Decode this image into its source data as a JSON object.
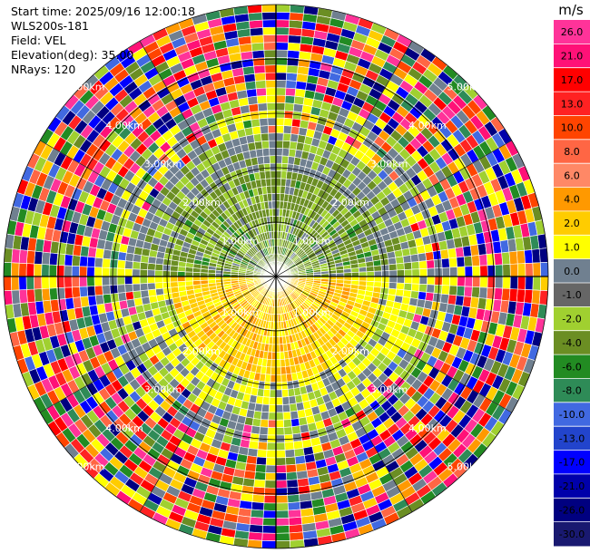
{
  "chart_data": {
    "type": "heatmap",
    "subtype": "ppi-radar",
    "header": {
      "start_time": "Start time: 2025/09/16 12:00:18",
      "instrument": "WLS200s-181",
      "field": "Field: VEL",
      "elevation": "Elevation(deg): 35.00",
      "nrays": "NRays: 120"
    },
    "field": "VEL",
    "elevation_deg": 35.0,
    "n_rays": 120,
    "max_range_km": 5.0,
    "range_rings_km": [
      1.0,
      2.0,
      3.0,
      4.0,
      5.0
    ],
    "range_labels": [
      "1.00km",
      "2.00km",
      "3.00km",
      "4.00km",
      "5.00km"
    ],
    "radials_deg": [
      0,
      30,
      60,
      90,
      120,
      150,
      180,
      210,
      240,
      270,
      300,
      330
    ],
    "colorbar": {
      "unit": "m/s",
      "tick_labels": [
        "26.0",
        "21.0",
        "17.0",
        "13.0",
        "10.0",
        "8.0",
        "6.0",
        "4.0",
        "2.0",
        "1.0",
        "0.0",
        "-1.0",
        "-2.0",
        "-4.0",
        "-6.0",
        "-8.0",
        "-10.0",
        "-13.0",
        "-17.0",
        "-21.0",
        "-26.0",
        "-30.0"
      ],
      "colors": [
        "#ff3399",
        "#ff1177",
        "#ff0000",
        "#ff2222",
        "#ff4400",
        "#ff6644",
        "#ff8866",
        "#ff9900",
        "#ffcc00",
        "#ffff00",
        "#708090",
        "#666666",
        "#a0d030",
        "#6b8e23",
        "#228b22",
        "#2e8b57",
        "#4169e1",
        "#2244cc",
        "#0000ff",
        "#0000aa",
        "#000080",
        "#191970"
      ]
    },
    "pattern": {
      "near_north_color": "#6b8e23",
      "near_south_color": "#ffcc00",
      "mid_color": "#ffff00",
      "outer": "noisy"
    }
  }
}
